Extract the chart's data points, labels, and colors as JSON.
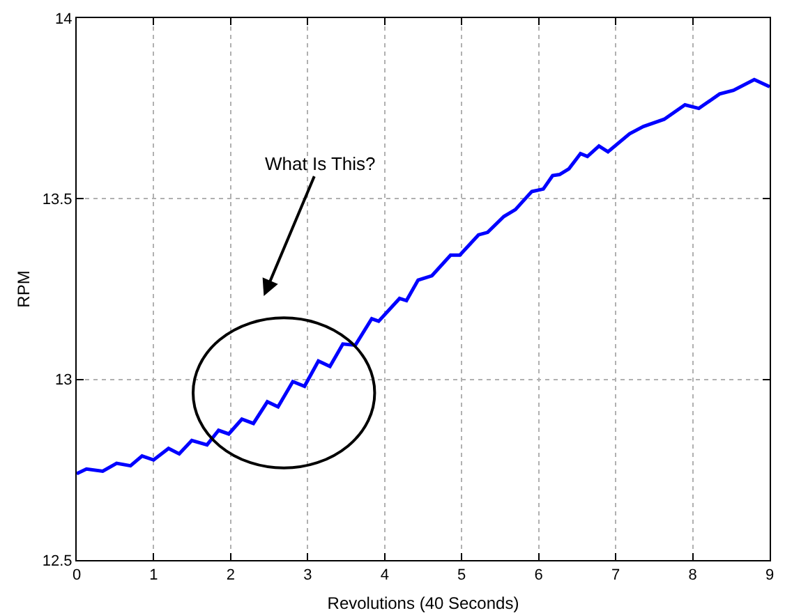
{
  "chart_data": {
    "type": "line",
    "xlabel": "Revolutions (40 Seconds)",
    "ylabel": "RPM",
    "x": [
      0,
      0.127,
      0.338,
      0.519,
      0.699,
      0.849,
      0.999,
      1.193,
      1.332,
      1.495,
      1.693,
      1.843,
      1.975,
      2.145,
      2.295,
      2.476,
      2.615,
      2.807,
      2.959,
      3.139,
      3.289,
      3.457,
      3.62,
      3.832,
      3.922,
      4.193,
      4.283,
      4.434,
      4.614,
      4.856,
      4.976,
      5.218,
      5.337,
      5.548,
      5.698,
      5.91,
      6.06,
      6.181,
      6.271,
      6.393,
      6.543,
      6.633,
      6.783,
      6.9,
      7.18,
      7.36,
      7.63,
      7.9,
      8.08,
      8.35,
      8.53,
      8.8,
      9
    ],
    "series": [
      {
        "color": "#0000ff",
        "values": [
          12.739,
          12.752,
          12.746,
          12.768,
          12.761,
          12.788,
          12.777,
          12.809,
          12.794,
          12.831,
          12.819,
          12.859,
          12.849,
          12.89,
          12.878,
          12.938,
          12.924,
          12.994,
          12.981,
          13.051,
          13.036,
          13.098,
          13.095,
          13.168,
          13.161,
          13.224,
          13.218,
          13.275,
          13.287,
          13.344,
          13.344,
          13.4,
          13.407,
          13.451,
          13.47,
          13.52,
          13.527,
          13.564,
          13.567,
          13.583,
          13.625,
          13.617,
          13.646,
          13.63,
          13.68,
          13.7,
          13.72,
          13.76,
          13.75,
          13.79,
          13.8,
          13.83,
          13.81
        ]
      }
    ],
    "xlim": [
      0,
      9
    ],
    "ylim": [
      12.5,
      14
    ],
    "xticks": [
      0,
      1,
      2,
      3,
      4,
      5,
      6,
      7,
      8,
      9
    ],
    "yticks": [
      12.5,
      13,
      13.5,
      14
    ],
    "grid": true,
    "marker": "none",
    "line_style": "solid",
    "annotations": [
      "What Is This?"
    ]
  }
}
